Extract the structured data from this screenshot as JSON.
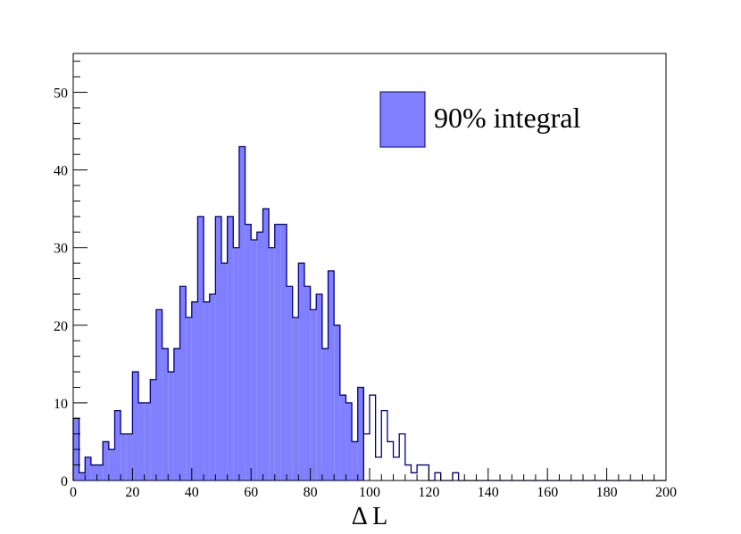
{
  "chart_data": {
    "type": "bar",
    "xlabel": "Δ L",
    "ylabel": "",
    "xlim": [
      0,
      200
    ],
    "ylim": [
      0,
      55
    ],
    "bin_width": 2,
    "x_ticks": [
      "0",
      "20",
      "40",
      "60",
      "80",
      "100",
      "120",
      "140",
      "160",
      "180",
      "200"
    ],
    "y_ticks": [
      "0",
      "10",
      "20",
      "30",
      "40",
      "50"
    ],
    "legend": {
      "label": "90% integral",
      "position": "top-right"
    },
    "shaded_up_to": 98,
    "colors": {
      "fill": "#8080ff",
      "line": "#000080"
    },
    "values": [
      8,
      1,
      3,
      2,
      2,
      5,
      4,
      9,
      6,
      6,
      14,
      10,
      10,
      13,
      22,
      17,
      14,
      17,
      25,
      21,
      23,
      34,
      23,
      24,
      34,
      28,
      34,
      30,
      43,
      33,
      31,
      32,
      35,
      30,
      33,
      33,
      25,
      21,
      28,
      25,
      22,
      24,
      17,
      27,
      20,
      11,
      10,
      5,
      12,
      6,
      11,
      3,
      9,
      5,
      3,
      6,
      2,
      1,
      2,
      2,
      0,
      1,
      0,
      0,
      1,
      0,
      0,
      0,
      0,
      0,
      0,
      0,
      0,
      0,
      0,
      0,
      0,
      0,
      0,
      0,
      0,
      0,
      0,
      0,
      0,
      0,
      0,
      0,
      0,
      0,
      0,
      0,
      0,
      0,
      0,
      0,
      0,
      0,
      0,
      0
    ]
  }
}
